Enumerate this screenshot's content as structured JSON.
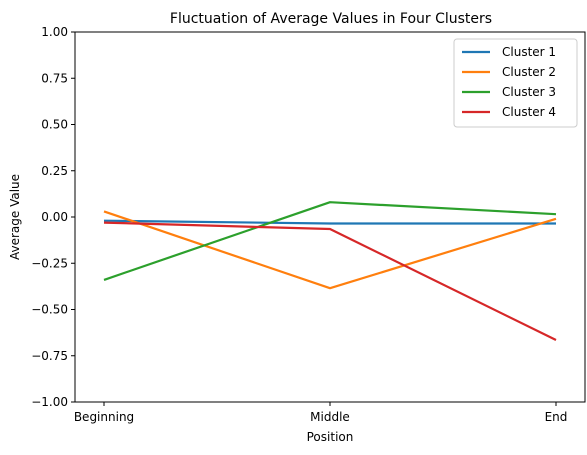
{
  "chart_data": {
    "type": "line",
    "title": "Fluctuation of Average Values in Four Clusters",
    "xlabel": "Position",
    "ylabel": "Average Value",
    "categories": [
      "Beginning",
      "Middle",
      "End"
    ],
    "ylim": [
      -1.0,
      1.0
    ],
    "yticks": [
      "−1.00",
      "−0.75",
      "−0.50",
      "−0.25",
      "0.00",
      "0.25",
      "0.50",
      "0.75",
      "1.00"
    ],
    "ytick_values": [
      -1.0,
      -0.75,
      -0.5,
      -0.25,
      0.0,
      0.25,
      0.5,
      0.75,
      1.0
    ],
    "grid": false,
    "legend_position": "top-right",
    "series": [
      {
        "name": "Cluster 1",
        "color": "#1f77b4",
        "values": [
          -0.02,
          -0.035,
          -0.035
        ]
      },
      {
        "name": "Cluster 2",
        "color": "#ff7f0e",
        "values": [
          0.03,
          -0.385,
          -0.01
        ]
      },
      {
        "name": "Cluster 3",
        "color": "#2ca02c",
        "values": [
          -0.34,
          0.08,
          0.015
        ]
      },
      {
        "name": "Cluster 4",
        "color": "#d62728",
        "values": [
          -0.03,
          -0.065,
          -0.665
        ]
      }
    ]
  }
}
